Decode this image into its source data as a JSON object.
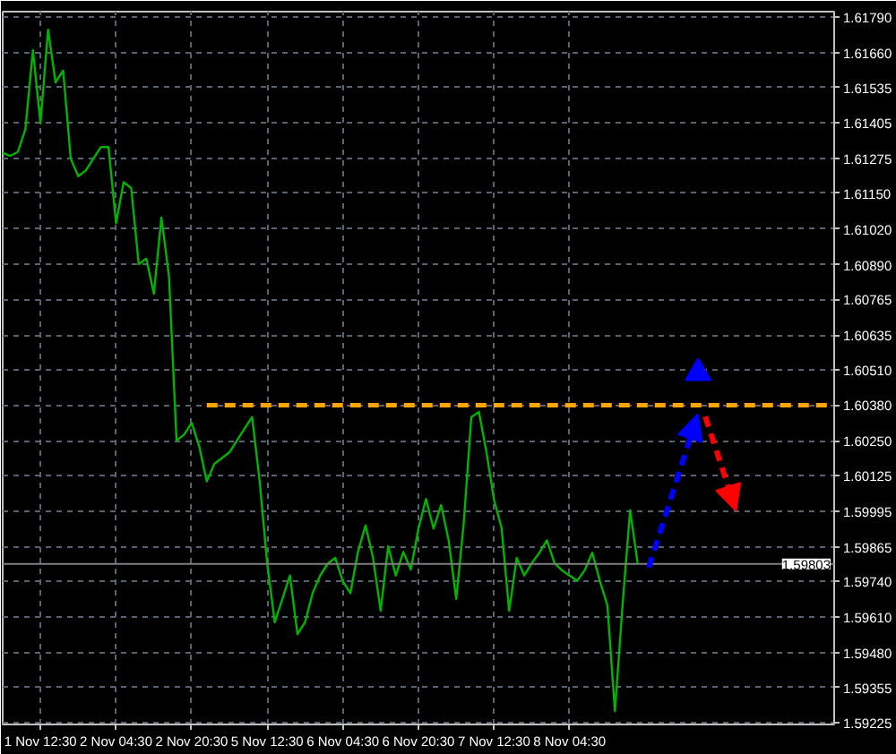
{
  "chart_data": {
    "type": "line",
    "categories": [
      null,
      null,
      null,
      null,
      null,
      "1 Nov 12:30",
      null,
      null,
      null,
      null,
      null,
      null,
      null,
      null,
      null,
      "2 Nov 04:30",
      null,
      null,
      null,
      null,
      null,
      null,
      null,
      null,
      null,
      "2 Nov 20:30",
      null,
      null,
      null,
      null,
      null,
      null,
      null,
      null,
      null,
      "5 Nov 12:30",
      null,
      null,
      null,
      null,
      null,
      null,
      null,
      null,
      null,
      "6 Nov 04:30",
      null,
      null,
      null,
      null,
      null,
      null,
      null,
      null,
      null,
      "6 Nov 20:30",
      null,
      null,
      null,
      null,
      null,
      null,
      null,
      null,
      null,
      "7 Nov 12:30",
      null,
      null,
      null,
      null,
      null,
      null,
      null,
      null,
      null,
      "8 Nov 04:30",
      null,
      null,
      null,
      null,
      null,
      null,
      null,
      null,
      null,
      null,
      null,
      null,
      null,
      null,
      null,
      null,
      null,
      null,
      null,
      null,
      null,
      null,
      null,
      null,
      null,
      null,
      null,
      null,
      null,
      null,
      null,
      null,
      null,
      null,
      null
    ],
    "ylim": [
      1.5922,
      1.6181
    ],
    "yticks": [
      {
        "value": 1.6179,
        "label": "1.61790"
      },
      {
        "value": 1.6166,
        "label": "1.61660"
      },
      {
        "value": 1.61535,
        "label": "1.61535"
      },
      {
        "value": 1.61405,
        "label": "1.61405"
      },
      {
        "value": 1.61275,
        "label": "1.61275"
      },
      {
        "value": 1.6115,
        "label": "1.61150"
      },
      {
        "value": 1.6102,
        "label": "1.61020"
      },
      {
        "value": 1.6089,
        "label": "1.60890"
      },
      {
        "value": 1.60765,
        "label": "1.60765"
      },
      {
        "value": 1.60635,
        "label": "1.60635"
      },
      {
        "value": 1.6051,
        "label": "1.60510"
      },
      {
        "value": 1.6038,
        "label": "1.60380"
      },
      {
        "value": 1.6025,
        "label": "1.60250"
      },
      {
        "value": 1.60125,
        "label": "1.60125"
      },
      {
        "value": 1.59995,
        "label": "1.59995"
      },
      {
        "value": 1.59865,
        "label": "1.59865"
      },
      {
        "value": 1.5974,
        "label": "1.59740"
      },
      {
        "value": 1.5961,
        "label": "1.59610"
      },
      {
        "value": 1.5948,
        "label": "1.59480"
      },
      {
        "value": 1.59355,
        "label": "1.59355"
      },
      {
        "value": 1.59225,
        "label": "1.59225"
      }
    ],
    "grid": true,
    "ref_lines": [
      {
        "axis": "y",
        "value": 1.59803,
        "label": "1.59803",
        "color": "#808080"
      }
    ],
    "series": [
      {
        "color": "#00b400",
        "line_style": "solid",
        "values": [
          1.61297,
          1.61286,
          1.613,
          1.61382,
          1.6167,
          1.61404,
          1.61745,
          1.61553,
          1.61596,
          1.61276,
          1.61212,
          1.61233,
          1.61276,
          1.61318,
          1.61318,
          1.61041,
          1.6119,
          1.61169,
          1.60892,
          1.60913,
          1.60785,
          1.61062,
          1.60849,
          1.60252,
          1.60273,
          1.60316,
          1.60231,
          1.60103,
          1.60167,
          1.60188,
          1.60209,
          1.60252,
          1.60295,
          1.60337,
          1.60103,
          1.59804,
          1.59591,
          1.59676,
          1.59761,
          1.59548,
          1.59591,
          1.59697,
          1.59761,
          1.59804,
          1.59825,
          1.5974,
          1.59697,
          1.59847,
          1.59943,
          1.59825,
          1.59633,
          1.59868,
          1.59761,
          1.59847,
          1.59783,
          1.59932,
          1.60039,
          1.59932,
          1.60017,
          1.59889,
          1.59676,
          1.59953,
          1.60337,
          1.60356,
          1.60209,
          1.60036,
          1.59934,
          1.59633,
          1.59825,
          1.59761,
          1.59806,
          1.59844,
          1.59889,
          1.59806,
          1.5978,
          1.59761,
          1.59742,
          1.5978,
          1.59844,
          1.59742,
          1.59652,
          1.59268,
          1.59652,
          1.59998,
          1.59806,
          null,
          null,
          null,
          null,
          null,
          null,
          null,
          null,
          null,
          null,
          null,
          null,
          null,
          null,
          null,
          null,
          null,
          null,
          null,
          null,
          null,
          null,
          null,
          null,
          null,
          null
        ]
      },
      {
        "color": "#ffa500",
        "line_style": "dashed",
        "values": [
          null,
          null,
          null,
          null,
          null,
          null,
          null,
          null,
          null,
          null,
          null,
          null,
          null,
          null,
          null,
          null,
          null,
          null,
          null,
          null,
          null,
          null,
          null,
          null,
          null,
          null,
          null,
          1.6038,
          null,
          null,
          null,
          null,
          null,
          null,
          null,
          null,
          null,
          null,
          null,
          null,
          null,
          null,
          null,
          null,
          null,
          null,
          null,
          null,
          null,
          null,
          null,
          null,
          null,
          null,
          null,
          null,
          null,
          null,
          null,
          null,
          null,
          null,
          null,
          null,
          null,
          null,
          null,
          null,
          null,
          null,
          null,
          null,
          null,
          null,
          null,
          null,
          null,
          null,
          null,
          null,
          null,
          null,
          null,
          null,
          null,
          null,
          null,
          null,
          null,
          null,
          null,
          null,
          null,
          null,
          null,
          null,
          null,
          null,
          null,
          null,
          null,
          null,
          null,
          null,
          null,
          null,
          null,
          null,
          null,
          null,
          1.6038
        ]
      },
      {
        "type": "scatter",
        "color": "#0000ff",
        "marker": "triangle",
        "values": [
          null,
          null,
          null,
          null,
          null,
          null,
          null,
          null,
          null,
          null,
          null,
          null,
          null,
          null,
          null,
          null,
          null,
          null,
          null,
          null,
          null,
          null,
          null,
          null,
          null,
          null,
          null,
          null,
          null,
          null,
          null,
          null,
          null,
          null,
          null,
          null,
          null,
          null,
          null,
          null,
          null,
          null,
          null,
          null,
          null,
          null,
          null,
          null,
          null,
          null,
          null,
          null,
          null,
          null,
          null,
          null,
          null,
          null,
          null,
          null,
          null,
          null,
          null,
          null,
          null,
          null,
          null,
          null,
          null,
          null,
          null,
          null,
          null,
          null,
          null,
          null,
          null,
          null,
          null,
          null,
          null,
          null,
          null,
          null,
          null,
          null,
          null,
          null,
          null,
          null,
          null,
          null,
          1.60497,
          null,
          null,
          null,
          null,
          null,
          null,
          null,
          null,
          null,
          null,
          null,
          null,
          null,
          null,
          null,
          null,
          null,
          null
        ]
      }
    ]
  }
}
